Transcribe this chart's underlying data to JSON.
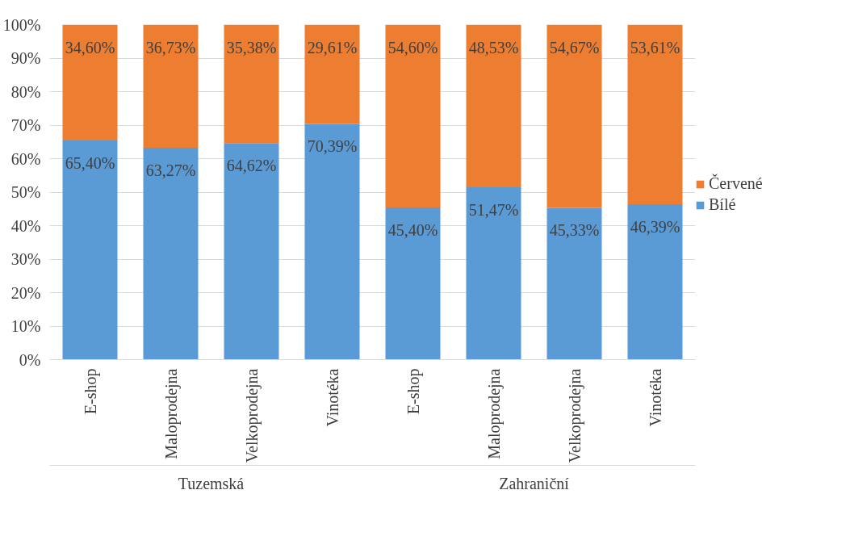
{
  "chart_data": {
    "type": "bar",
    "stacked": true,
    "categories": [
      "E-shop",
      "Maloprodejna",
      "Velkoprodejna",
      "Vinotéka",
      "E-shop",
      "Maloprodejna",
      "Velkoprodejna",
      "Vinotéka"
    ],
    "series": [
      {
        "name": "Bílé",
        "color": "#5b9bd5",
        "values": [
          65.4,
          63.27,
          64.62,
          70.39,
          45.4,
          51.47,
          45.33,
          46.39
        ],
        "value_labels": [
          "65,40%",
          "63,27%",
          "64,62%",
          "70,39%",
          "45,40%",
          "51,47%",
          "45,33%",
          "46,39%"
        ]
      },
      {
        "name": "Červené",
        "color": "#ed7d31",
        "values": [
          34.6,
          36.73,
          35.38,
          29.61,
          54.6,
          48.53,
          54.67,
          53.61
        ],
        "value_labels": [
          "34,60%",
          "36,73%",
          "35,38%",
          "29,61%",
          "54,60%",
          "48,53%",
          "54,67%",
          "53,61%"
        ]
      }
    ],
    "annotations": [
      "Tuzemská",
      "Zahraniční"
    ],
    "ylim": [
      0,
      100
    ],
    "yticks": [
      {
        "value": 0,
        "label": "0%"
      },
      {
        "value": 10,
        "label": "10%"
      },
      {
        "value": 20,
        "label": "20%"
      },
      {
        "value": 30,
        "label": "30%"
      },
      {
        "value": 40,
        "label": "40%"
      },
      {
        "value": 50,
        "label": "50%"
      },
      {
        "value": 60,
        "label": "60%"
      },
      {
        "value": 70,
        "label": "70%"
      },
      {
        "value": 80,
        "label": "80%"
      },
      {
        "value": 90,
        "label": "90%"
      },
      {
        "value": 100,
        "label": "100%"
      }
    ],
    "grid": "y",
    "legend": "right"
  }
}
